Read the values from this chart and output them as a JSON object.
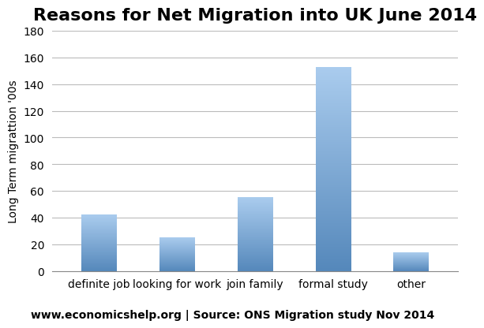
{
  "title": "Reasons for Net Migration into UK June 2014",
  "categories": [
    "definite job",
    "looking for work",
    "join family",
    "formal study",
    "other"
  ],
  "values": [
    42,
    25,
    55,
    153,
    14
  ],
  "bar_color": "#6699cc",
  "bar_color_light": "#99bbdd",
  "ylabel": "Long Term migrattion '00s",
  "ylim": [
    0,
    180
  ],
  "yticks": [
    0,
    20,
    40,
    60,
    80,
    100,
    120,
    140,
    160,
    180
  ],
  "footnote": "www.economicshelp.org | Source: ONS Migration study Nov 2014",
  "background_color": "#ffffff",
  "title_fontsize": 16,
  "ylabel_fontsize": 10,
  "xtick_fontsize": 10,
  "ytick_fontsize": 10,
  "footnote_fontsize": 10
}
